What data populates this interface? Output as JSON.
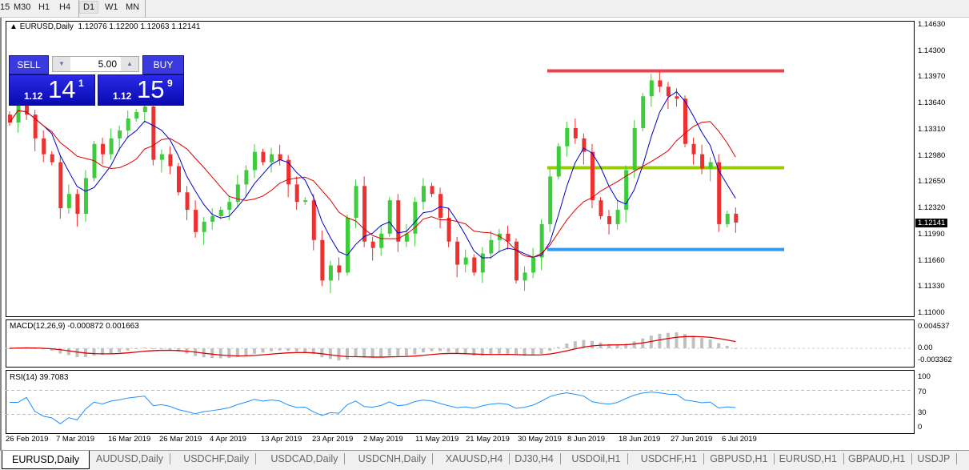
{
  "toolbar": {
    "timeframes": [
      "15",
      "M30",
      "H1",
      "H4",
      "D1",
      "W1",
      "MN"
    ],
    "active": "D1"
  },
  "chart": {
    "title": "EURUSD,Daily",
    "ohlc": "1.12076 1.12200 1.12063 1.12141",
    "trade": {
      "sell_label": "SELL",
      "buy_label": "BUY",
      "lot": "5.00",
      "sell_prefix": "1.12",
      "sell_big": "14",
      "sell_sup": "1",
      "buy_prefix": "1.12",
      "buy_big": "15",
      "buy_sup": "9"
    },
    "price_axis": [
      "1.14630",
      "1.14300",
      "1.13970",
      "1.13640",
      "1.13310",
      "1.12980",
      "1.12650",
      "1.12320",
      "1.11990",
      "1.11660",
      "1.11330",
      "1.11000"
    ],
    "current_price": "1.12141",
    "macd": {
      "label": "MACD(12,26,9) -0.000872 0.001663",
      "axis": [
        "0.004537",
        "0.00",
        "-0.003362"
      ]
    },
    "rsi": {
      "label": "RSI(14) 39.7083",
      "axis": [
        "100",
        "70",
        "30",
        "0"
      ]
    },
    "date_axis": [
      "26 Feb 2019",
      "7 Mar 2019",
      "16 Mar 2019",
      "26 Mar 2019",
      "4 Apr 2019",
      "13 Apr 2019",
      "23 Apr 2019",
      "2 May 2019",
      "11 May 2019",
      "21 May 2019",
      "30 May 2019",
      "8 Jun 2019",
      "18 Jun 2019",
      "27 Jun 2019",
      "6 Jul 2019"
    ],
    "colors": {
      "bull": "#3ccc3c",
      "bear": "#ee3030",
      "ma_fast": "#0000cc",
      "ma_slow": "#e00000",
      "rsi": "#1e90ff",
      "macd_signal": "#e00000",
      "macd_hist": "#c0c0c0"
    },
    "levels": [
      {
        "price": 1.1405,
        "color": "#f04050"
      },
      {
        "price": 1.1283,
        "color": "#99cc00"
      },
      {
        "price": 1.118,
        "color": "#3399ee"
      }
    ]
  },
  "chart_data": {
    "type": "candlestick",
    "symbol": "EURUSD",
    "timeframe": "Daily",
    "ylim": [
      1.11,
      1.1463
    ],
    "closes": [
      1.134,
      1.137,
      1.135,
      1.132,
      1.13,
      1.129,
      1.1232,
      1.125,
      1.1225,
      1.127,
      1.1313,
      1.13,
      1.132,
      1.133,
      1.1345,
      1.1353,
      1.136,
      1.1293,
      1.13,
      1.1285,
      1.1252,
      1.123,
      1.1202,
      1.1215,
      1.1222,
      1.123,
      1.124,
      1.1262,
      1.128,
      1.1303,
      1.129,
      1.13,
      1.1293,
      1.1262,
      1.124,
      1.1242,
      1.1192,
      1.1141,
      1.116,
      1.1151,
      1.122,
      1.126,
      1.119,
      1.1182,
      1.12,
      1.1242,
      1.119,
      1.12,
      1.124,
      1.126,
      1.125,
      1.122,
      1.119,
      1.1161,
      1.117,
      1.1151,
      1.1175,
      1.1192,
      1.12,
      1.119,
      1.1141,
      1.1151,
      1.117,
      1.1212,
      1.1272,
      1.131,
      1.1333,
      1.132,
      1.1303,
      1.1242,
      1.1222,
      1.1212,
      1.123,
      1.128,
      1.1333,
      1.1373,
      1.1393,
      1.1385,
      1.1373,
      1.137,
      1.1313,
      1.13,
      1.1282,
      1.129,
      1.1212,
      1.1225,
      1.1214
    ]
  },
  "tabs": [
    "EURUSD,Daily",
    "AUDUSD,Daily",
    "USDCHF,Daily",
    "USDCAD,Daily",
    "USDCNH,Daily",
    "XAUUSD,H4",
    "DJ30,H4",
    "USDOil,H1",
    "USDCHF,H1",
    "GBPUSD,H1",
    "EURUSD,H1",
    "GBPAUD,H1",
    "USDJP"
  ]
}
